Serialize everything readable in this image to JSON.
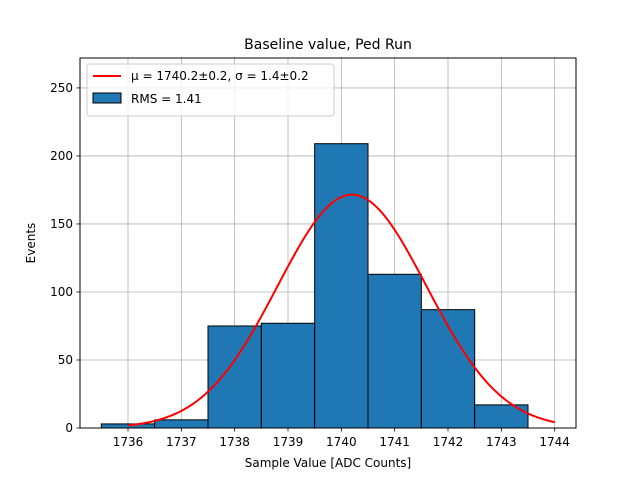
{
  "chart_data": {
    "type": "bar",
    "title": "Baseline value, Ped Run",
    "xlabel": "Sample Value [ADC Counts]",
    "ylabel": "Events",
    "xlim": [
      1735.1,
      1744.4
    ],
    "ylim": [
      0,
      272
    ],
    "grid": true,
    "legend_position": "top-left",
    "bar_color": "#1f77b4",
    "fit_color": "#ff0000",
    "bins": [
      {
        "left": 1735.5,
        "right": 1736.5,
        "count": 3
      },
      {
        "left": 1736.5,
        "right": 1737.5,
        "count": 6
      },
      {
        "left": 1737.5,
        "right": 1738.5,
        "count": 75
      },
      {
        "left": 1738.5,
        "right": 1739.5,
        "count": 77
      },
      {
        "left": 1739.5,
        "right": 1740.5,
        "count": 209
      },
      {
        "left": 1740.5,
        "right": 1741.5,
        "count": 113
      },
      {
        "left": 1741.5,
        "right": 1742.5,
        "count": 87
      },
      {
        "left": 1742.5,
        "right": 1743.5,
        "count": 17
      }
    ],
    "fit": {
      "amplitude": 171.5,
      "mu": 1740.2,
      "sigma": 1.4,
      "x_range": [
        1736,
        1744
      ]
    },
    "x_ticks": [
      "1736",
      "1737",
      "1738",
      "1739",
      "1740",
      "1741",
      "1742",
      "1743",
      "1744"
    ],
    "y_ticks": [
      "0",
      "50",
      "100",
      "150",
      "200",
      "250"
    ],
    "legend": {
      "fit_label": "μ = 1740.2±0.2, σ = 1.4±0.2",
      "hist_label": "RMS = 1.41"
    }
  }
}
